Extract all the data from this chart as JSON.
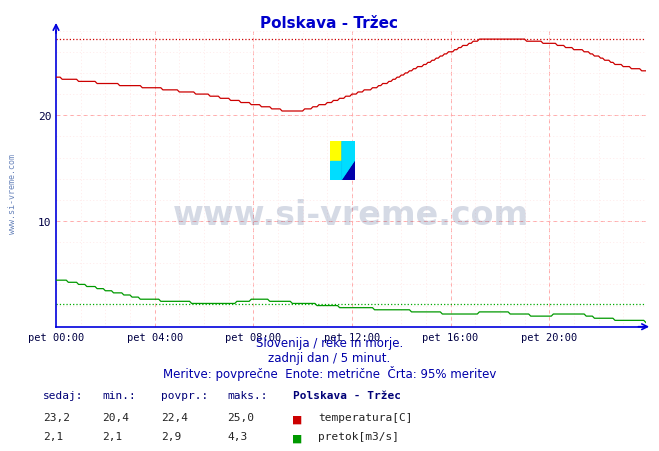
{
  "title": "Polskava - Tržec",
  "title_color": "#0000cc",
  "bg_color": "#ffffff",
  "plot_bg_color": "#ffffff",
  "grid_color": "#ddaaaa",
  "border_left_color": "#0000dd",
  "border_bottom_color": "#0000dd",
  "x_label_color": "#000044",
  "y_label_color": "#000044",
  "xlim": [
    0,
    287
  ],
  "ylim": [
    0,
    28
  ],
  "yticks": [
    10,
    20
  ],
  "xtick_positions": [
    0,
    48,
    96,
    144,
    192,
    240
  ],
  "xtick_labels": [
    "pet 00:00",
    "pet 04:00",
    "pet 08:00",
    "pet 12:00",
    "pet 16:00",
    "pet 20:00"
  ],
  "max_temp_line_y": 27.2,
  "max_flow_line_y": 2.1,
  "max_line_color_temp": "#cc0000",
  "max_line_color_flow": "#00aa00",
  "temp_color": "#cc0000",
  "flow_color": "#009900",
  "black_line_color": "#333333",
  "watermark_text": "www.si-vreme.com",
  "watermark_color": "#1a3570",
  "watermark_alpha": 0.18,
  "subtitle1": "Slovenija / reke in morje.",
  "subtitle2": "zadnji dan / 5 minut.",
  "subtitle3": "Meritve: povprečne  Enote: metrične  Črta: 95% meritev",
  "subtitle_color": "#0000aa",
  "table_header": [
    "sedaj:",
    "min.:",
    "povpr.:",
    "maks.:",
    "Polskava - Tržec"
  ],
  "temp_row": [
    "23,2",
    "20,4",
    "22,4",
    "25,0"
  ],
  "flow_row": [
    "2,1",
    "2,1",
    "2,9",
    "4,3"
  ],
  "temp_label": "temperatura[C]",
  "flow_label": "pretok[m3/s]",
  "sidebar_text": "www.si-vreme.com",
  "sidebar_color": "#4466aa",
  "figsize": [
    6.59,
    4.52
  ],
  "dpi": 100
}
